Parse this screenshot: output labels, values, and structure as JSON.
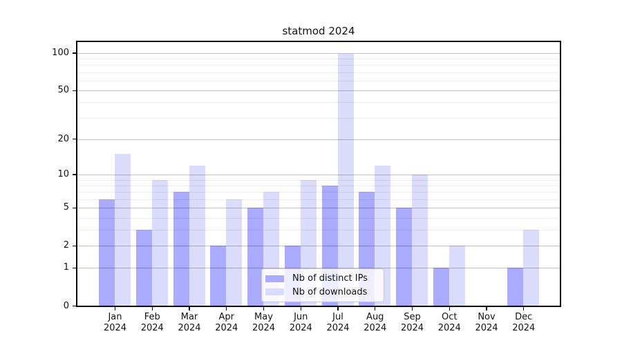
{
  "title": "statmod 2024",
  "chart_data": {
    "type": "bar",
    "title": "statmod 2024",
    "xlabel": "",
    "ylabel": "",
    "y_scale": "log1p",
    "grid": true,
    "legend_position": "bottom-center",
    "categories": [
      "Jan",
      "Feb",
      "Mar",
      "Apr",
      "May",
      "Jun",
      "Jul",
      "Aug",
      "Sep",
      "Oct",
      "Nov",
      "Dec"
    ],
    "category_year": "2024",
    "series": [
      {
        "name": "Nb of distinct IPs",
        "color": "#aaaaff",
        "values": [
          6,
          3,
          7,
          2,
          5,
          2,
          8,
          7,
          5,
          1,
          0,
          1
        ]
      },
      {
        "name": "Nb of downloads",
        "color": "#dbdbfb",
        "values": [
          15,
          9,
          12,
          6,
          7,
          9,
          98,
          12,
          10,
          2,
          0,
          3
        ]
      }
    ],
    "y_axis": {
      "major_ticks": [
        0,
        1,
        2,
        5,
        10,
        20,
        50,
        100
      ],
      "minor_gridlines": [
        3,
        4,
        6,
        7,
        8,
        9,
        30,
        40,
        60,
        70,
        80,
        90
      ],
      "ylim_top": 115
    },
    "colors": {
      "background": "#ffffff",
      "axis": "#000000",
      "text": "#111111"
    }
  }
}
